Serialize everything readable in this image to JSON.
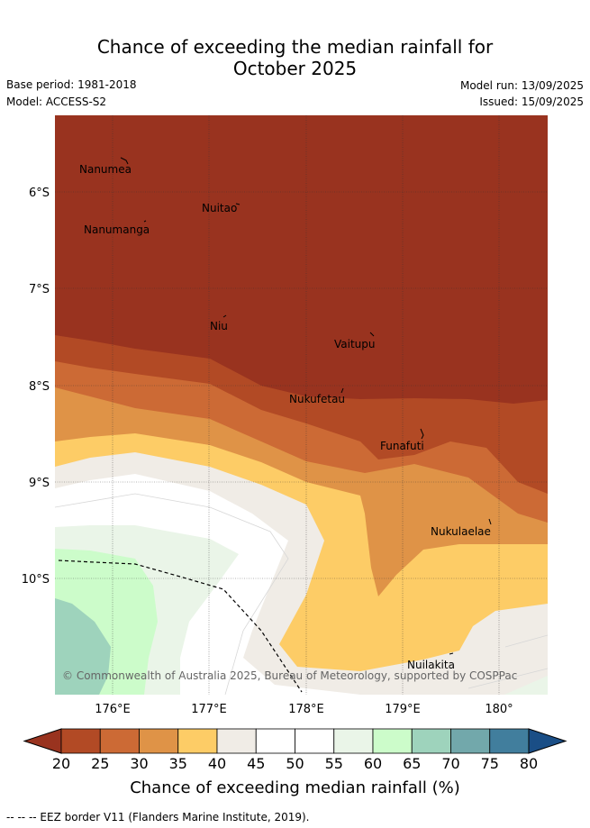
{
  "header": {
    "title_line1": "Chance of exceeding the median rainfall for",
    "title_line2": "October 2025",
    "base_period": "Base period: 1981-2018",
    "model": "Model: ACCESS-S2",
    "model_run": "Model run: 13/09/2025",
    "issued": "Issued: 15/09/2025"
  },
  "map": {
    "lat_labels": [
      "6°S",
      "7°S",
      "8°S",
      "9°S",
      "10°S"
    ],
    "lon_labels": [
      "176°E",
      "177°E",
      "178°E",
      "179°E",
      "180°"
    ],
    "islands": [
      {
        "name": "Nanumea"
      },
      {
        "name": "Nuitao"
      },
      {
        "name": "Nanumanga"
      },
      {
        "name": "Niu"
      },
      {
        "name": "Vaitupu"
      },
      {
        "name": "Nukufetau"
      },
      {
        "name": "Funafuti"
      },
      {
        "name": "Nukulaelae"
      },
      {
        "name": "Nuilakita"
      }
    ],
    "copyright": "© Commonwealth of Australia 2025, Bureau of Meteorology, supported by COSPPac"
  },
  "colorbar": {
    "ticks": [
      "20",
      "25",
      "30",
      "35",
      "40",
      "45",
      "50",
      "55",
      "60",
      "65",
      "70",
      "75",
      "80"
    ],
    "colors": [
      "#b24a25",
      "#cc6a35",
      "#df9347",
      "#fdcc66",
      "#f0ece6",
      "#ffffff",
      "#ffffff",
      "#eaf5e8",
      "#ccfcca",
      "#9ed3bc",
      "#72a8ab",
      "#417e9d"
    ],
    "under_color": "#99331f",
    "over_color": "#1a4e86",
    "title": "Chance of exceeding median rainfall (%)"
  },
  "footer": {
    "eez_note": "--  --  -- EEZ border V11 (Flanders Marine Institute, 2019)."
  }
}
